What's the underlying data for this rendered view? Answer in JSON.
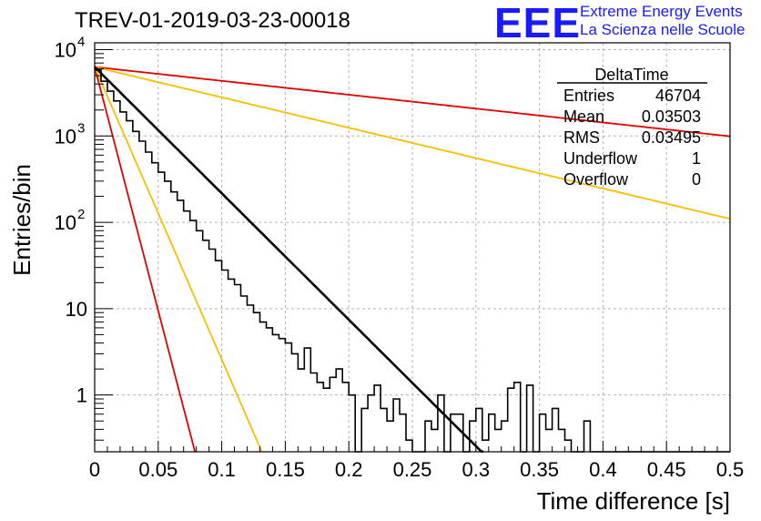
{
  "header": {
    "title": "TREV-01-2019-03-23-00018",
    "logo": "EEE",
    "org_line1": "Extreme Energy Events",
    "org_line2": "La Scienza nelle Scuole"
  },
  "stats_box": {
    "name": "DeltaTime",
    "rows": [
      {
        "label": "Entries",
        "value": "46704"
      },
      {
        "label": "Mean",
        "value": "0.03503"
      },
      {
        "label": "RMS",
        "value": "0.03495"
      },
      {
        "label": "Underflow",
        "value": "1"
      },
      {
        "label": "Overflow",
        "value": "0"
      }
    ]
  },
  "colors": {
    "histogram": "#000000",
    "fit": "#000000",
    "red_curve": "#e00000",
    "orange_curve": "#f5bf00",
    "grid": "#b0b0b0"
  },
  "chart_data": {
    "type": "line",
    "title": "TREV-01-2019-03-23-00018",
    "xlabel": "Time difference [s]",
    "ylabel": "Entries/bin",
    "xlim": [
      0,
      0.5
    ],
    "ylim": [
      0.22,
      12000
    ],
    "yscale": "log",
    "grid": true,
    "x_ticks": [
      "0",
      "0.05",
      "0.1",
      "0.15",
      "0.2",
      "0.25",
      "0.3",
      "0.35",
      "0.4",
      "0.45",
      "0.5"
    ],
    "y_ticks": [
      {
        "value": 1,
        "label": "1"
      },
      {
        "value": 10,
        "label": "10"
      },
      {
        "value": 100,
        "label": "10",
        "exp": "2"
      },
      {
        "value": 1000,
        "label": "10",
        "exp": "3"
      },
      {
        "value": 10000,
        "label": "10",
        "exp": "4"
      }
    ],
    "histogram": {
      "name": "DeltaTime",
      "bin_width": 0.005,
      "counts": [
        5800,
        4300,
        3300,
        2550,
        1900,
        1500,
        1130,
        870,
        650,
        490,
        380,
        300,
        225,
        180,
        135,
        105,
        80,
        62,
        49,
        36,
        28,
        22,
        19,
        14,
        11,
        9,
        7,
        6,
        5,
        4.5,
        4,
        3,
        2,
        3.5,
        1.8,
        1.4,
        1.2,
        1.6,
        2,
        1.4,
        1,
        0.2,
        0.7,
        1,
        1.3,
        0.7,
        0.5,
        0.9,
        0.6,
        0.3,
        0.2,
        0.2,
        0.5,
        0.4,
        1,
        0.2,
        0.6,
        0.6,
        0.2,
        0.5,
        0.7,
        0.3,
        0.6,
        0.4,
        0.5,
        1.2,
        1.4,
        0.2,
        1.3,
        0.2,
        0.6,
        0.4,
        0.7,
        0.4,
        0.3,
        0.2,
        0.2,
        0.5,
        0.2,
        0.2,
        0.2,
        0.2,
        0.2,
        0.2,
        0.2,
        0.2,
        0.2,
        0.2,
        0.2,
        0.2,
        0.2,
        0.2,
        0.2,
        0.2,
        0.2,
        0.2,
        0.2,
        0.2,
        0.2,
        0.2
      ],
      "counts_note": "approximate reading"
    },
    "series": [
      {
        "values_fn": "exp",
        "y0": 6300,
        "slope": 33.7,
        "x_end": 0.362
      },
      {
        "values_fn": "exp",
        "y0": 6300,
        "slope": 130,
        "x_end": 0.105
      },
      {
        "values_fn": "exp",
        "y0": 6300,
        "slope": 78,
        "x_end": 0.132
      },
      {
        "values_fn": "exp",
        "y0": 6300,
        "slope": 8.1,
        "x_end": 0.5
      },
      {
        "values_fn": "exp",
        "y0": 6300,
        "slope": 3.7,
        "x_end": 0.5
      }
    ]
  }
}
